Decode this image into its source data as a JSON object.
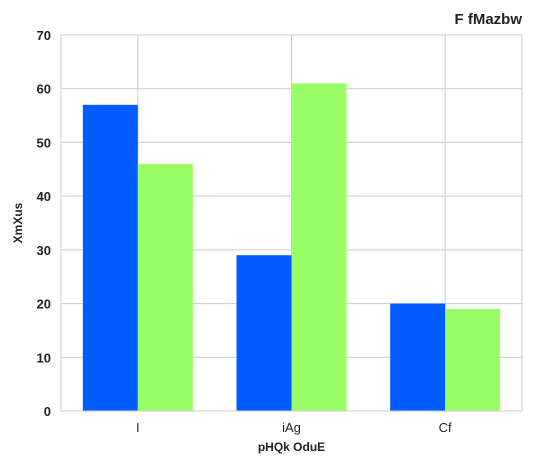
{
  "chart_data": {
    "type": "bar",
    "title": "F fMazbw",
    "xlabel": "pHQk OduE",
    "ylabel": "XmXus",
    "categories": [
      "I",
      "iAg",
      "Cf"
    ],
    "series": [
      {
        "values": [
          57,
          29,
          20
        ],
        "color": "#005cff"
      },
      {
        "values": [
          46,
          61,
          19
        ],
        "color": "#99ff66"
      }
    ],
    "ylim": [
      0,
      70
    ],
    "yticks": [
      0,
      10,
      20,
      30,
      40,
      50,
      60,
      70
    ],
    "grid": true
  }
}
